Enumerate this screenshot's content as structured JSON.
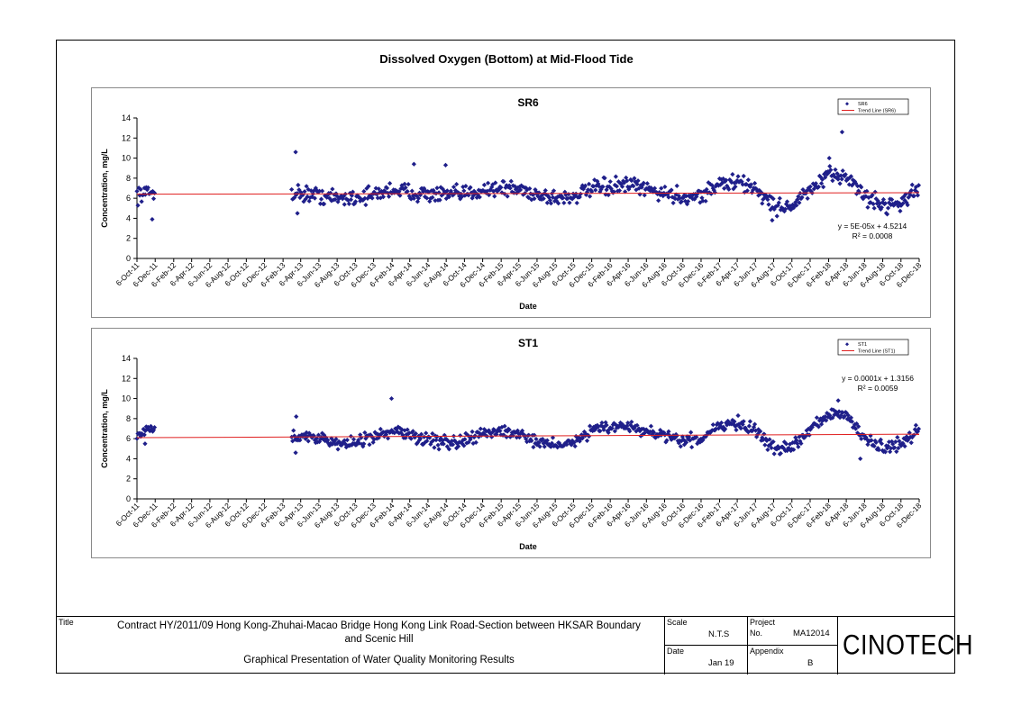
{
  "page": {
    "main_title": "Dissolved Oxygen (Bottom) at Mid-Flood Tide"
  },
  "chart_data": [
    {
      "type": "scatter",
      "title": "SR6",
      "xlabel": "Date",
      "ylabel": "Concentration, mg/L",
      "ylim": [
        0,
        14
      ],
      "yticks": [
        0,
        2,
        4,
        6,
        8,
        10,
        12,
        14
      ],
      "x_tick_labels": [
        "6-Oct-11",
        "6-Dec-11",
        "6-Feb-12",
        "6-Apr-12",
        "6-Jun-12",
        "6-Aug-12",
        "6-Oct-12",
        "6-Dec-12",
        "6-Feb-13",
        "6-Apr-13",
        "6-Jun-13",
        "6-Aug-13",
        "6-Oct-13",
        "6-Dec-13",
        "6-Feb-14",
        "6-Apr-14",
        "6-Jun-14",
        "6-Aug-14",
        "6-Oct-14",
        "6-Dec-14",
        "6-Feb-15",
        "6-Apr-15",
        "6-Jun-15",
        "6-Aug-15",
        "6-Oct-15",
        "6-Dec-15",
        "6-Feb-16",
        "6-Apr-16",
        "6-Jun-16",
        "6-Aug-16",
        "6-Oct-16",
        "6-Dec-16",
        "6-Feb-17",
        "6-Apr-17",
        "6-Jun-17",
        "6-Aug-17",
        "6-Oct-17",
        "6-Dec-17",
        "6-Feb-18",
        "6-Apr-18",
        "6-Jun-18",
        "6-Aug-18",
        "6-Oct-18",
        "6-Dec-18"
      ],
      "legend": [
        "SR6",
        "Trend Line (SR6)"
      ],
      "legend_position": "top-right",
      "equation": "y = 5E-05x + 4.5214",
      "r_squared": "R² = 0.0008",
      "trend": {
        "start": [
          "6-Oct-11",
          6.4
        ],
        "end": [
          "6-Dec-18",
          6.55
        ]
      },
      "profile": [
        [
          "6-Oct-11",
          6.4
        ],
        [
          "6-Dec-11",
          6.6
        ],
        [
          "6-Feb-13",
          6.6
        ],
        [
          "6-Apr-13",
          6.5
        ],
        [
          "6-Jun-13",
          6.3
        ],
        [
          "6-Aug-13",
          6.0
        ],
        [
          "6-Oct-13",
          6.1
        ],
        [
          "6-Dec-13",
          6.3
        ],
        [
          "6-Feb-14",
          6.9
        ],
        [
          "6-Apr-14",
          6.6
        ],
        [
          "6-Jun-14",
          6.4
        ],
        [
          "6-Aug-14",
          6.3
        ],
        [
          "6-Oct-14",
          6.4
        ],
        [
          "6-Dec-14",
          6.9
        ],
        [
          "6-Feb-15",
          7.0
        ],
        [
          "6-Apr-15",
          6.9
        ],
        [
          "6-Jun-15",
          6.4
        ],
        [
          "6-Aug-15",
          6.0
        ],
        [
          "6-Oct-15",
          6.2
        ],
        [
          "6-Dec-15",
          6.9
        ],
        [
          "6-Feb-16",
          7.1
        ],
        [
          "6-Apr-16",
          7.3
        ],
        [
          "6-Jun-16",
          6.9
        ],
        [
          "6-Aug-16",
          6.5
        ],
        [
          "6-Oct-16",
          6.1
        ],
        [
          "6-Dec-16",
          6.3
        ],
        [
          "6-Feb-17",
          7.4
        ],
        [
          "6-Apr-17",
          7.6
        ],
        [
          "6-Jun-17",
          7.0
        ],
        [
          "6-Aug-17",
          5.2
        ],
        [
          "6-Oct-17",
          5.2
        ],
        [
          "6-Dec-17",
          6.8
        ],
        [
          "6-Feb-18",
          8.2
        ],
        [
          "6-Apr-18",
          8.3
        ],
        [
          "6-Jun-18",
          6.2
        ],
        [
          "6-Aug-18",
          5.3
        ],
        [
          "6-Oct-18",
          5.6
        ],
        [
          "6-Dec-18",
          6.9
        ]
      ],
      "spread": 0.8,
      "gap": [
        "6-Dec-11",
        "6-Mar-13"
      ],
      "outliers": [
        [
          "20-Mar-13",
          10.6
        ],
        [
          "23-Mar-18",
          12.6
        ],
        [
          "8-Feb-18",
          10.0
        ],
        [
          "20-Apr-14",
          9.4
        ],
        [
          "4-Aug-14",
          9.3
        ],
        [
          "26-Nov-11",
          3.9
        ],
        [
          "26-Mar-13",
          4.5
        ],
        [
          "1-Aug-17",
          3.8
        ]
      ]
    },
    {
      "type": "scatter",
      "title": "ST1",
      "xlabel": "Date",
      "ylabel": "Concentration, mg/L",
      "ylim": [
        0,
        14
      ],
      "yticks": [
        0,
        2,
        4,
        6,
        8,
        10,
        12,
        14
      ],
      "x_tick_labels": [
        "6-Oct-11",
        "6-Dec-11",
        "6-Feb-12",
        "6-Apr-12",
        "6-Jun-12",
        "6-Aug-12",
        "6-Oct-12",
        "6-Dec-12",
        "6-Feb-13",
        "6-Apr-13",
        "6-Jun-13",
        "6-Aug-13",
        "6-Oct-13",
        "6-Dec-13",
        "6-Feb-14",
        "6-Apr-14",
        "6-Jun-14",
        "6-Aug-14",
        "6-Oct-14",
        "6-Dec-14",
        "6-Feb-15",
        "6-Apr-15",
        "6-Jun-15",
        "6-Aug-15",
        "6-Oct-15",
        "6-Dec-15",
        "6-Feb-16",
        "6-Apr-16",
        "6-Jun-16",
        "6-Aug-16",
        "6-Oct-16",
        "6-Dec-16",
        "6-Feb-17",
        "6-Apr-17",
        "6-Jun-17",
        "6-Aug-17",
        "6-Oct-17",
        "6-Dec-17",
        "6-Feb-18",
        "6-Apr-18",
        "6-Jun-18",
        "6-Aug-18",
        "6-Oct-18",
        "6-Dec-18"
      ],
      "legend": [
        "ST1",
        "Trend Line (ST1)"
      ],
      "legend_position": "top-right",
      "equation": "y = 0.0001x + 1.3156",
      "r_squared": "R² = 0.0059",
      "trend": {
        "start": [
          "6-Oct-11",
          6.1
        ],
        "end": [
          "6-Dec-18",
          6.45
        ]
      },
      "profile": [
        [
          "6-Oct-11",
          6.5
        ],
        [
          "6-Dec-11",
          7.0
        ],
        [
          "6-Feb-13",
          6.5
        ],
        [
          "6-Apr-13",
          6.4
        ],
        [
          "6-Jun-13",
          6.0
        ],
        [
          "6-Aug-13",
          5.5
        ],
        [
          "6-Oct-13",
          5.6
        ],
        [
          "6-Dec-13",
          6.0
        ],
        [
          "6-Feb-14",
          6.8
        ],
        [
          "6-Apr-14",
          6.3
        ],
        [
          "6-Jun-14",
          5.9
        ],
        [
          "6-Aug-14",
          5.6
        ],
        [
          "6-Oct-14",
          5.7
        ],
        [
          "6-Dec-14",
          6.5
        ],
        [
          "6-Feb-15",
          6.8
        ],
        [
          "6-Apr-15",
          6.5
        ],
        [
          "6-Jun-15",
          5.8
        ],
        [
          "6-Aug-15",
          5.4
        ],
        [
          "6-Oct-15",
          5.6
        ],
        [
          "6-Dec-15",
          6.8
        ],
        [
          "6-Feb-16",
          7.2
        ],
        [
          "6-Apr-16",
          7.3
        ],
        [
          "6-Jun-16",
          6.7
        ],
        [
          "6-Aug-16",
          6.1
        ],
        [
          "6-Oct-16",
          5.7
        ],
        [
          "6-Dec-16",
          6.1
        ],
        [
          "6-Feb-17",
          7.4
        ],
        [
          "6-Apr-17",
          7.6
        ],
        [
          "6-Jun-17",
          6.8
        ],
        [
          "6-Aug-17",
          5.1
        ],
        [
          "6-Oct-17",
          5.1
        ],
        [
          "6-Dec-17",
          6.9
        ],
        [
          "6-Feb-18",
          8.3
        ],
        [
          "6-Apr-18",
          8.4
        ],
        [
          "6-Jun-18",
          6.0
        ],
        [
          "6-Aug-18",
          5.0
        ],
        [
          "6-Oct-18",
          5.4
        ],
        [
          "6-Dec-18",
          6.8
        ]
      ],
      "spread": 0.6,
      "gap": [
        "6-Dec-11",
        "6-Mar-13"
      ],
      "outliers": [
        [
          "4-Feb-14",
          10.0
        ],
        [
          "10-Mar-18",
          9.8
        ],
        [
          "22-Mar-13",
          8.2
        ],
        [
          "20-Mar-13",
          4.6
        ],
        [
          "23-May-18",
          4.0
        ],
        [
          "2-Nov-11",
          5.5
        ]
      ]
    }
  ],
  "title_block": {
    "title_label": "Title",
    "title_line1": "Contract HY/2011/09 Hong Kong-Zhuhai-Macao Bridge Hong Kong Link Road-Section between HKSAR Boundary",
    "title_line2": "and Scenic Hill",
    "subtitle": "Graphical Presentation of Water Quality Monitoring Results",
    "scale_label": "Scale",
    "scale_value": "N.T.S",
    "date_label": "Date",
    "date_value": "Jan 19",
    "project_label": "Project",
    "project_no_label": "No.",
    "project_value": "MA12014",
    "appendix_label": "Appendix",
    "appendix_value": "B",
    "logo_text": "CINOTECH"
  },
  "colors": {
    "marker": "#1f1f8a",
    "trend_line": "#e02020",
    "panel_border": "#8a8a8a"
  }
}
